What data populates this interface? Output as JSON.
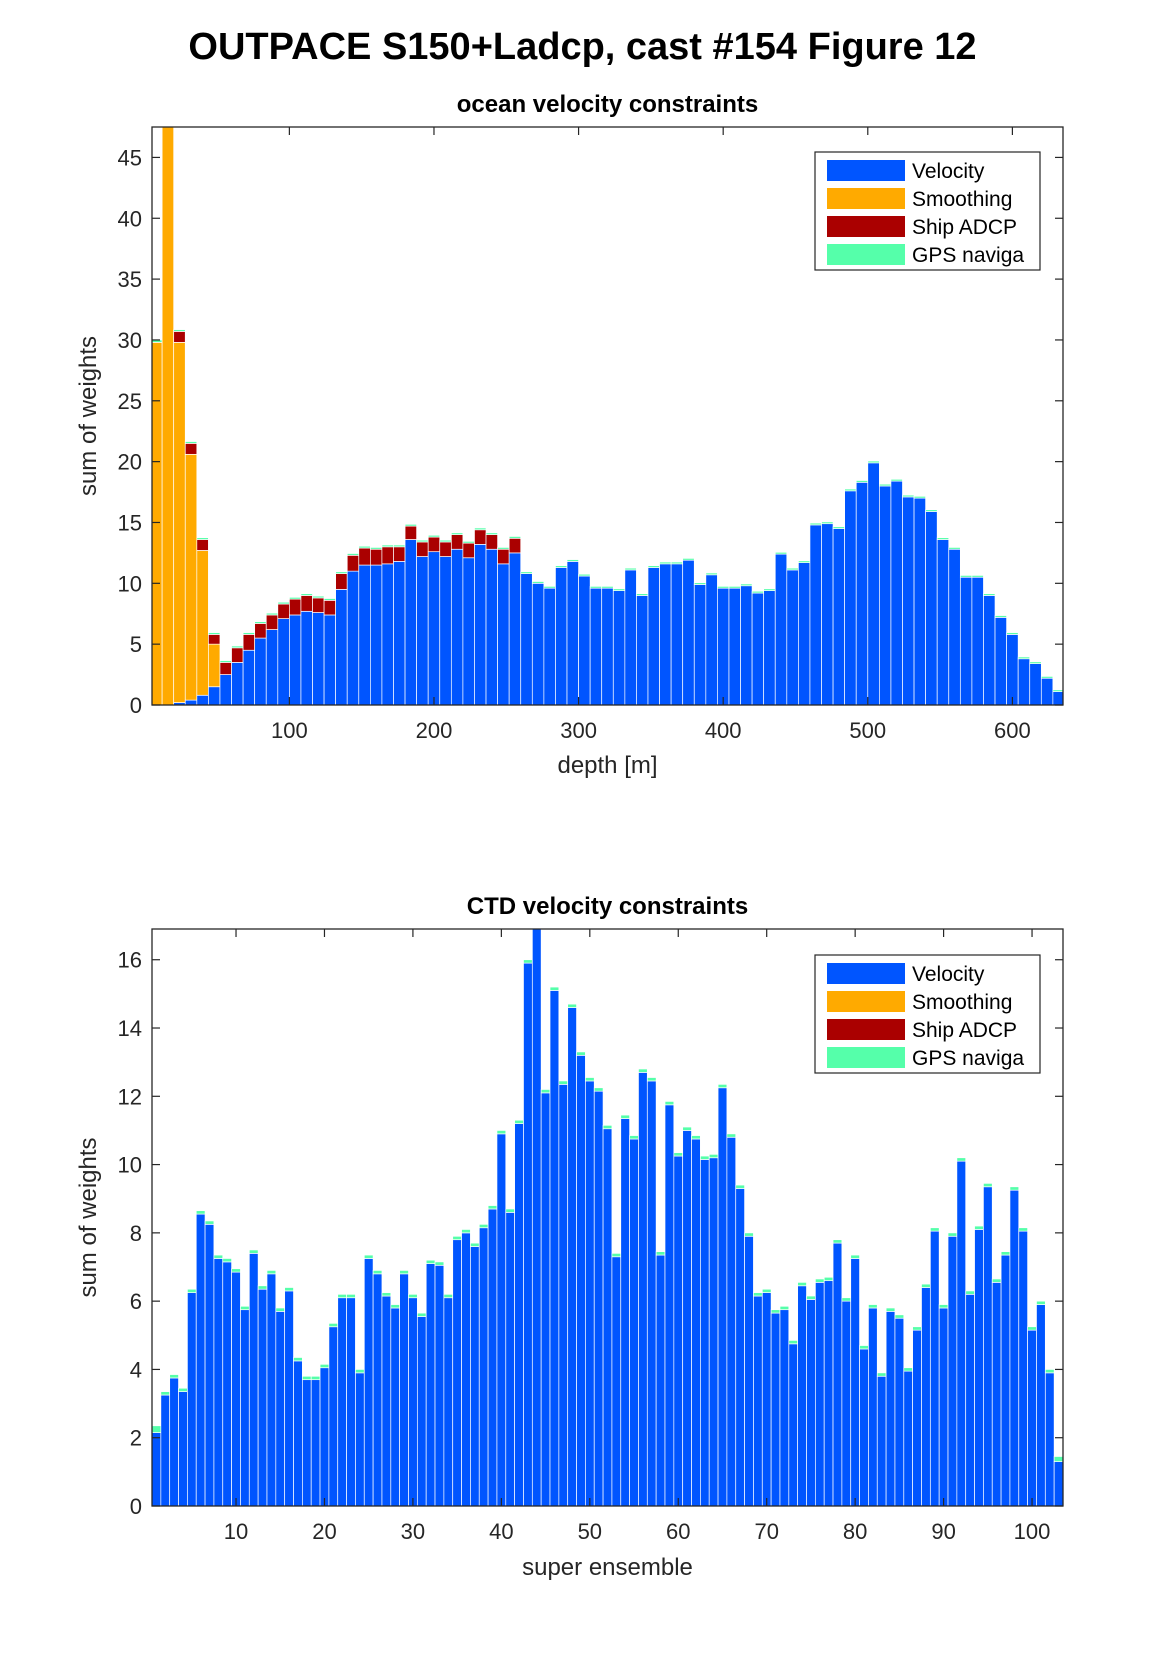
{
  "figure_title": "OUTPACE S150+Ladcp, cast #154  Figure 12",
  "colors": {
    "velocity": "#0055ff",
    "smoothing": "#ffaa00",
    "ship_adcp": "#aa0000",
    "gps": "#55ffaa"
  },
  "chart_data": [
    {
      "type": "bar",
      "stacked": true,
      "title": "ocean velocity constraints",
      "xlabel": "depth [m]",
      "ylabel": "sum of weights",
      "xlim": [
        5,
        635
      ],
      "ylim": [
        0,
        47.5
      ],
      "xticks": [
        100,
        200,
        300,
        400,
        500,
        600
      ],
      "yticks": [
        0,
        5,
        10,
        15,
        20,
        25,
        30,
        35,
        40,
        45
      ],
      "bin_width": 8,
      "legend": [
        "Velocity",
        "Smoothing",
        "Ship ADCP",
        "GPS naviga"
      ],
      "legend_location": "top-right",
      "x": [
        8,
        16,
        24,
        32,
        40,
        48,
        56,
        64,
        72,
        80,
        88,
        96,
        104,
        112,
        120,
        128,
        136,
        144,
        152,
        160,
        168,
        176,
        184,
        192,
        200,
        208,
        216,
        224,
        232,
        240,
        248,
        256,
        264,
        272,
        280,
        288,
        296,
        304,
        312,
        320,
        328,
        336,
        344,
        352,
        360,
        368,
        376,
        384,
        392,
        400,
        408,
        416,
        424,
        432,
        440,
        448,
        456,
        464,
        472,
        480,
        488,
        496,
        504,
        512,
        520,
        528,
        536,
        544,
        552,
        560,
        568,
        576,
        584,
        592,
        600,
        608,
        616,
        624,
        632
      ],
      "series": [
        {
          "name": "Velocity",
          "values": [
            0,
            0,
            0.2,
            0.4,
            0.8,
            1.5,
            2.5,
            3.5,
            4.5,
            5.5,
            6.2,
            7.1,
            7.4,
            7.7,
            7.6,
            7.4,
            9.5,
            11.0,
            11.5,
            11.5,
            11.6,
            11.8,
            13.6,
            12.2,
            12.6,
            12.2,
            12.8,
            12.1,
            13.2,
            12.8,
            11.6,
            12.5,
            10.8,
            10.0,
            9.6,
            11.3,
            11.8,
            10.6,
            9.6,
            9.6,
            9.4,
            11.1,
            9.0,
            11.3,
            11.6,
            11.6,
            11.9,
            9.9,
            10.7,
            9.6,
            9.6,
            9.8,
            9.2,
            9.4,
            12.4,
            11.1,
            11.7,
            14.8,
            14.9,
            14.5,
            17.6,
            18.3,
            19.9,
            18.0,
            18.4,
            17.1,
            17.0,
            15.9,
            13.6,
            12.8,
            10.5,
            10.5,
            9.0,
            7.2,
            5.8,
            3.8,
            3.4,
            2.2,
            1.1
          ]
        },
        {
          "name": "Smoothing",
          "values": [
            29.8,
            47.5,
            29.6,
            20.2,
            11.9,
            3.5,
            0,
            0,
            0,
            0,
            0,
            0,
            0,
            0,
            0,
            0,
            0,
            0,
            0,
            0,
            0,
            0,
            0,
            0,
            0,
            0,
            0,
            0,
            0,
            0,
            0,
            0,
            0,
            0,
            0,
            0,
            0,
            0,
            0,
            0,
            0,
            0,
            0,
            0,
            0,
            0,
            0,
            0,
            0,
            0,
            0,
            0,
            0,
            0,
            0,
            0,
            0,
            0,
            0,
            0,
            0,
            0,
            0,
            0,
            0,
            0,
            0,
            0,
            0,
            0,
            0,
            0,
            0,
            0,
            0,
            0,
            0,
            0,
            0
          ]
        },
        {
          "name": "Ship ADCP",
          "values": [
            0,
            0,
            0.9,
            0.9,
            0.9,
            0.8,
            1.0,
            1.2,
            1.3,
            1.2,
            1.2,
            1.2,
            1.3,
            1.3,
            1.2,
            1.2,
            1.3,
            1.3,
            1.4,
            1.3,
            1.4,
            1.2,
            1.1,
            1.2,
            1.2,
            1.2,
            1.2,
            1.2,
            1.2,
            1.2,
            1.2,
            1.2,
            0,
            0,
            0,
            0,
            0,
            0,
            0,
            0,
            0,
            0,
            0,
            0,
            0,
            0,
            0,
            0,
            0,
            0,
            0,
            0,
            0,
            0,
            0,
            0,
            0,
            0,
            0,
            0,
            0,
            0,
            0,
            0,
            0,
            0,
            0,
            0,
            0,
            0,
            0,
            0,
            0,
            0,
            0,
            0,
            0,
            0,
            0
          ]
        },
        {
          "name": "GPS naviga",
          "values": [
            0.2,
            0.1,
            0.15,
            0.15,
            0.15,
            0.15,
            0.15,
            0.15,
            0.15,
            0.15,
            0.15,
            0.15,
            0.15,
            0.15,
            0.15,
            0.15,
            0.15,
            0.15,
            0.15,
            0.15,
            0.15,
            0.15,
            0.15,
            0.15,
            0.15,
            0.15,
            0.15,
            0.15,
            0.15,
            0.15,
            0.15,
            0.15,
            0.15,
            0.15,
            0.15,
            0.15,
            0.15,
            0.15,
            0.15,
            0.15,
            0.15,
            0.15,
            0.15,
            0.15,
            0.15,
            0.15,
            0.15,
            0.15,
            0.15,
            0.15,
            0.15,
            0.15,
            0.15,
            0.15,
            0.15,
            0.15,
            0.15,
            0.15,
            0.15,
            0.15,
            0.15,
            0.15,
            0.15,
            0.15,
            0.15,
            0.15,
            0.15,
            0.15,
            0.15,
            0.15,
            0.15,
            0.15,
            0.15,
            0.15,
            0.15,
            0.15,
            0.15,
            0.15,
            0.15
          ]
        }
      ]
    },
    {
      "type": "bar",
      "stacked": true,
      "title": "CTD velocity constraints",
      "xlabel": "super ensemble",
      "ylabel": "sum of weights",
      "xlim": [
        0.5,
        103.5
      ],
      "ylim": [
        0,
        16.9
      ],
      "xticks": [
        10,
        20,
        30,
        40,
        50,
        60,
        70,
        80,
        90,
        100
      ],
      "yticks": [
        0,
        2,
        4,
        6,
        8,
        10,
        12,
        14,
        16
      ],
      "bin_width": 1,
      "legend": [
        "Velocity",
        "Smoothing",
        "Ship ADCP",
        "GPS naviga"
      ],
      "legend_location": "top-right",
      "x": [
        1,
        2,
        3,
        4,
        5,
        6,
        7,
        8,
        9,
        10,
        11,
        12,
        13,
        14,
        15,
        16,
        17,
        18,
        19,
        20,
        21,
        22,
        23,
        24,
        25,
        26,
        27,
        28,
        29,
        30,
        31,
        32,
        33,
        34,
        35,
        36,
        37,
        38,
        39,
        40,
        41,
        42,
        43,
        44,
        45,
        46,
        47,
        48,
        49,
        50,
        51,
        52,
        53,
        54,
        55,
        56,
        57,
        58,
        59,
        60,
        61,
        62,
        63,
        64,
        65,
        66,
        67,
        68,
        69,
        70,
        71,
        72,
        73,
        74,
        75,
        76,
        77,
        78,
        79,
        80,
        81,
        82,
        83,
        84,
        85,
        86,
        87,
        88,
        89,
        90,
        91,
        92,
        93,
        94,
        95,
        96,
        97,
        98,
        99,
        100,
        101,
        102,
        103
      ],
      "series": [
        {
          "name": "Velocity",
          "values": [
            2.15,
            3.25,
            3.75,
            3.35,
            6.25,
            8.55,
            8.25,
            7.25,
            7.15,
            6.85,
            5.75,
            7.4,
            6.35,
            6.8,
            5.7,
            6.3,
            4.25,
            3.7,
            3.7,
            4.05,
            5.25,
            6.1,
            6.1,
            3.9,
            7.25,
            6.8,
            6.15,
            5.8,
            6.8,
            6.1,
            5.55,
            7.1,
            7.05,
            6.1,
            7.8,
            8.0,
            7.6,
            8.15,
            8.7,
            10.9,
            8.6,
            11.2,
            15.9,
            16.9,
            12.1,
            15.1,
            12.35,
            14.6,
            13.2,
            12.45,
            12.15,
            11.05,
            7.3,
            11.35,
            10.75,
            12.7,
            12.45,
            7.35,
            11.75,
            10.25,
            11.0,
            10.75,
            10.15,
            10.2,
            12.25,
            10.8,
            9.3,
            7.9,
            6.15,
            6.25,
            5.65,
            5.75,
            4.75,
            6.45,
            6.05,
            6.55,
            6.6,
            7.7,
            6.0,
            7.25,
            4.6,
            5.8,
            3.8,
            5.7,
            5.5,
            3.95,
            5.15,
            6.4,
            8.05,
            5.8,
            7.9,
            10.1,
            6.2,
            8.1,
            9.35,
            6.55,
            7.35,
            9.25,
            8.05,
            5.15,
            5.9,
            3.9,
            1.3
          ]
        },
        {
          "name": "Smoothing",
          "values": [
            0,
            0,
            0,
            0,
            0,
            0,
            0,
            0,
            0,
            0,
            0,
            0,
            0,
            0,
            0,
            0,
            0,
            0,
            0,
            0,
            0,
            0,
            0,
            0,
            0,
            0,
            0,
            0,
            0,
            0,
            0,
            0,
            0,
            0,
            0,
            0,
            0,
            0,
            0,
            0,
            0,
            0,
            0,
            0,
            0,
            0,
            0,
            0,
            0,
            0,
            0,
            0,
            0,
            0,
            0,
            0,
            0,
            0,
            0,
            0,
            0,
            0,
            0,
            0,
            0,
            0,
            0,
            0,
            0,
            0,
            0,
            0,
            0,
            0,
            0,
            0,
            0,
            0,
            0,
            0,
            0,
            0,
            0,
            0,
            0,
            0,
            0,
            0,
            0,
            0,
            0,
            0,
            0,
            0,
            0,
            0,
            0,
            0,
            0,
            0,
            0,
            0,
            0
          ]
        },
        {
          "name": "Ship ADCP",
          "values": [
            0,
            0,
            0,
            0,
            0,
            0,
            0,
            0,
            0,
            0,
            0,
            0,
            0,
            0,
            0,
            0,
            0,
            0,
            0,
            0,
            0,
            0,
            0,
            0,
            0,
            0,
            0,
            0,
            0,
            0,
            0,
            0,
            0,
            0,
            0,
            0,
            0,
            0,
            0,
            0,
            0,
            0,
            0,
            0,
            0,
            0,
            0,
            0,
            0,
            0,
            0,
            0,
            0,
            0,
            0,
            0,
            0,
            0,
            0,
            0,
            0,
            0,
            0,
            0,
            0,
            0,
            0,
            0,
            0,
            0,
            0,
            0,
            0,
            0,
            0,
            0,
            0,
            0,
            0,
            0,
            0,
            0,
            0,
            0,
            0,
            0,
            0,
            0,
            0,
            0,
            0,
            0,
            0,
            0,
            0,
            0,
            0,
            0,
            0,
            0,
            0,
            0,
            0
          ]
        },
        {
          "name": "GPS naviga",
          "values": [
            0.2,
            0.1,
            0.1,
            0.1,
            0.1,
            0.1,
            0.1,
            0.1,
            0.1,
            0.1,
            0.1,
            0.1,
            0.1,
            0.1,
            0.1,
            0.1,
            0.1,
            0.1,
            0.1,
            0.1,
            0.1,
            0.1,
            0.1,
            0.1,
            0.1,
            0.1,
            0.1,
            0.1,
            0.1,
            0.1,
            0.1,
            0.1,
            0.1,
            0.1,
            0.1,
            0.1,
            0.1,
            0.1,
            0.1,
            0.1,
            0.1,
            0.1,
            0.1,
            0.1,
            0.1,
            0.1,
            0.1,
            0.1,
            0.1,
            0.1,
            0.1,
            0.1,
            0.1,
            0.1,
            0.1,
            0.1,
            0.1,
            0.1,
            0.1,
            0.1,
            0.1,
            0.1,
            0.1,
            0.1,
            0.1,
            0.1,
            0.1,
            0.1,
            0.1,
            0.1,
            0.1,
            0.1,
            0.1,
            0.1,
            0.1,
            0.1,
            0.1,
            0.1,
            0.1,
            0.1,
            0.1,
            0.1,
            0.1,
            0.1,
            0.1,
            0.1,
            0.1,
            0.1,
            0.1,
            0.1,
            0.1,
            0.1,
            0.1,
            0.1,
            0.1,
            0.1,
            0.1,
            0.1,
            0.1,
            0.1,
            0.1,
            0.1,
            0.15
          ]
        }
      ]
    }
  ]
}
